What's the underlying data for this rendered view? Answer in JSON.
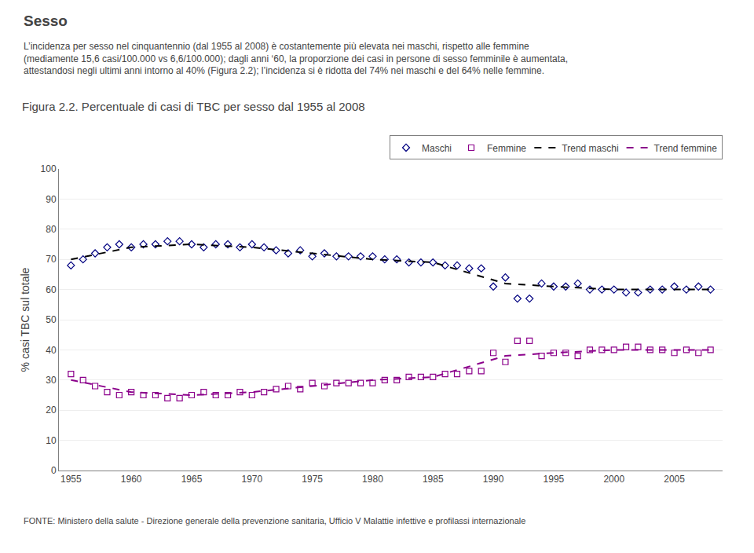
{
  "chart_data": {
    "type": "scatter",
    "title": "Figura 2.2. Percentuale di casi di TBC per sesso dal 1955 al 2008",
    "annotations": [
      "Sesso",
      "L’incidenza per sesso nel cinquantennio (dal 1955 al 2008) è costantemente più elevata nei maschi, rispetto alle femmine\n(mediamente 15,6 casi/100.000 vs 6,6/100.000); dagli anni ‘60, la proporzione dei casi in persone di sesso femminile è aumentata,\nattestandosi negli ultimi anni intorno al 40% (Figura 2.2); l’incidenza si è ridotta del 74% nei maschi e del 64% nelle femmine.",
      "FONTE: Ministero della salute - Direzione generale della prevenzione sanitaria, Ufficio V Malattie infettive e profilassi internazionale"
    ],
    "ylabel": "% casi TBC sul totale",
    "xlim": [
      1954,
      2009
    ],
    "ylim": [
      0,
      100
    ],
    "xticks": [
      1955,
      1960,
      1965,
      1970,
      1975,
      1980,
      1985,
      1990,
      1995,
      2000,
      2005
    ],
    "yticks": [
      0,
      10,
      20,
      30,
      40,
      50,
      60,
      70,
      80,
      90,
      100
    ],
    "grid": "y",
    "legend": "upper right",
    "series": [
      {
        "name": "Maschi",
        "type": "scatter",
        "marker": "diamond",
        "color": "#000080",
        "x": [
          1955,
          1956,
          1957,
          1958,
          1959,
          1960,
          1961,
          1962,
          1963,
          1964,
          1965,
          1966,
          1967,
          1968,
          1969,
          1970,
          1971,
          1972,
          1973,
          1974,
          1975,
          1976,
          1977,
          1978,
          1979,
          1980,
          1981,
          1982,
          1983,
          1984,
          1985,
          1986,
          1987,
          1988,
          1989,
          1990,
          1991,
          1992,
          1993,
          1994,
          1995,
          1996,
          1997,
          1998,
          1999,
          2000,
          2001,
          2002,
          2003,
          2004,
          2005,
          2006,
          2007,
          2008
        ],
        "values": [
          68,
          70,
          72,
          74,
          75,
          74,
          75,
          75,
          76,
          76,
          75,
          74,
          75,
          75,
          74,
          75,
          74,
          73,
          72,
          73,
          71,
          72,
          71,
          71,
          71,
          71,
          70,
          70,
          69,
          69,
          69,
          68,
          68,
          67,
          67,
          61,
          64,
          57,
          57,
          62,
          61,
          61,
          62,
          60,
          60,
          60,
          59,
          59,
          60,
          60,
          61,
          60,
          61,
          60
        ]
      },
      {
        "name": "Femmine",
        "type": "scatter",
        "marker": "square",
        "color": "#8B008B",
        "x": [
          1955,
          1956,
          1957,
          1958,
          1959,
          1960,
          1961,
          1962,
          1963,
          1964,
          1965,
          1966,
          1967,
          1968,
          1969,
          1970,
          1971,
          1972,
          1973,
          1974,
          1975,
          1976,
          1977,
          1978,
          1979,
          1980,
          1981,
          1982,
          1983,
          1984,
          1985,
          1986,
          1987,
          1988,
          1989,
          1990,
          1991,
          1992,
          1993,
          1994,
          1995,
          1996,
          1997,
          1998,
          1999,
          2000,
          2001,
          2002,
          2003,
          2004,
          2005,
          2006,
          2007,
          2008
        ],
        "values": [
          32,
          30,
          28,
          26,
          25,
          26,
          25,
          25,
          24,
          24,
          25,
          26,
          25,
          25,
          26,
          25,
          26,
          27,
          28,
          27,
          29,
          28,
          29,
          29,
          29,
          29,
          30,
          30,
          31,
          31,
          31,
          32,
          32,
          33,
          33,
          39,
          36,
          43,
          43,
          38,
          39,
          39,
          38,
          40,
          40,
          40,
          41,
          41,
          40,
          40,
          39,
          40,
          39,
          40
        ]
      },
      {
        "name": "Trend maschi",
        "type": "line",
        "line_style": "dash",
        "color": "#000000",
        "x": [
          1955,
          1960,
          1965,
          1970,
          1975,
          1980,
          1985,
          1990,
          1991,
          1995,
          2000,
          2005,
          2008
        ],
        "values": [
          70,
          74,
          75,
          74,
          72,
          70,
          69,
          63,
          62,
          61,
          60,
          60,
          60
        ]
      },
      {
        "name": "Trend femmine",
        "type": "line",
        "line_style": "dash",
        "color": "#8B008B",
        "x": [
          1955,
          1960,
          1965,
          1970,
          1975,
          1980,
          1985,
          1990,
          1991,
          1995,
          2000,
          2005,
          2008
        ],
        "values": [
          30,
          26,
          25,
          26,
          28,
          30,
          31,
          37,
          38,
          39,
          40,
          40,
          40
        ]
      }
    ]
  }
}
